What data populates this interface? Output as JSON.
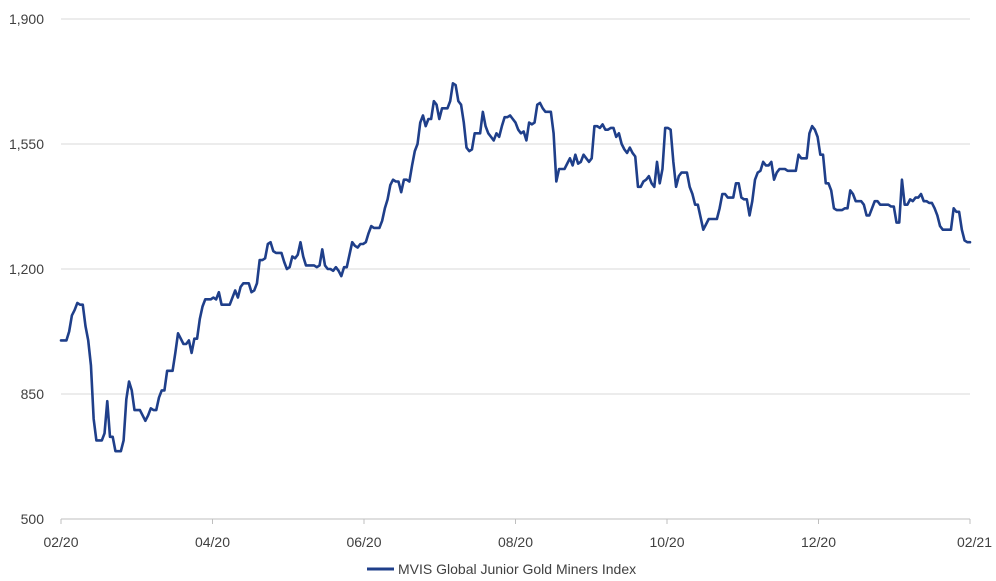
{
  "chart_data": {
    "type": "line",
    "title": "",
    "xlabel": "",
    "ylabel": "",
    "ylim": [
      500,
      1900
    ],
    "y_ticks": [
      "500",
      "850",
      "1,200",
      "1,550",
      "1,900"
    ],
    "x_ticks": [
      "02/20",
      "04/20",
      "06/20",
      "08/20",
      "10/20",
      "12/20",
      "02/21"
    ],
    "grid": "horizontal",
    "legend_position": "bottom",
    "line_color": "#1f3f8a",
    "series": [
      {
        "name": "MVIS Global Junior Gold Miners Index",
        "values": [
          1000,
          1000,
          1000,
          1025,
          1070,
          1085,
          1105,
          1100,
          1100,
          1040,
          1000,
          930,
          780,
          720,
          720,
          720,
          740,
          830,
          730,
          730,
          690,
          690,
          690,
          720,
          835,
          885,
          860,
          805,
          805,
          805,
          790,
          775,
          790,
          810,
          805,
          805,
          840,
          860,
          860,
          915,
          915,
          915,
          965,
          1020,
          1005,
          990,
          990,
          1000,
          965,
          1005,
          1005,
          1060,
          1095,
          1115,
          1115,
          1115,
          1120,
          1115,
          1135,
          1100,
          1100,
          1100,
          1100,
          1120,
          1140,
          1120,
          1150,
          1160,
          1160,
          1160,
          1135,
          1140,
          1160,
          1225,
          1225,
          1230,
          1270,
          1275,
          1250,
          1245,
          1245,
          1245,
          1220,
          1200,
          1205,
          1235,
          1230,
          1240,
          1275,
          1235,
          1210,
          1210,
          1210,
          1210,
          1205,
          1210,
          1255,
          1210,
          1200,
          1200,
          1195,
          1205,
          1195,
          1180,
          1205,
          1205,
          1240,
          1275,
          1265,
          1260,
          1270,
          1270,
          1275,
          1300,
          1320,
          1315,
          1315,
          1315,
          1335,
          1370,
          1395,
          1435,
          1450,
          1445,
          1445,
          1415,
          1450,
          1450,
          1445,
          1490,
          1530,
          1550,
          1610,
          1630,
          1600,
          1620,
          1620,
          1670,
          1660,
          1620,
          1650,
          1650,
          1650,
          1670,
          1720,
          1715,
          1670,
          1660,
          1610,
          1540,
          1530,
          1535,
          1580,
          1580,
          1580,
          1640,
          1600,
          1580,
          1570,
          1560,
          1580,
          1570,
          1600,
          1625,
          1625,
          1630,
          1620,
          1610,
          1590,
          1580,
          1585,
          1560,
          1610,
          1605,
          1610,
          1660,
          1665,
          1650,
          1640,
          1640,
          1640,
          1580,
          1445,
          1480,
          1480,
          1480,
          1495,
          1510,
          1490,
          1520,
          1495,
          1500,
          1520,
          1510,
          1500,
          1510,
          1600,
          1600,
          1595,
          1605,
          1590,
          1590,
          1595,
          1595,
          1570,
          1580,
          1550,
          1535,
          1525,
          1540,
          1525,
          1515,
          1430,
          1430,
          1445,
          1450,
          1460,
          1440,
          1430,
          1500,
          1440,
          1480,
          1595,
          1595,
          1590,
          1500,
          1430,
          1460,
          1470,
          1470,
          1470,
          1430,
          1410,
          1380,
          1380,
          1345,
          1310,
          1325,
          1340,
          1340,
          1340,
          1340,
          1370,
          1410,
          1410,
          1400,
          1400,
          1400,
          1440,
          1440,
          1400,
          1395,
          1395,
          1350,
          1390,
          1450,
          1470,
          1475,
          1500,
          1490,
          1490,
          1500,
          1450,
          1470,
          1480,
          1480,
          1480,
          1475,
          1475,
          1475,
          1475,
          1520,
          1510,
          1510,
          1510,
          1580,
          1600,
          1590,
          1570,
          1520,
          1520,
          1440,
          1440,
          1420,
          1370,
          1365,
          1365,
          1365,
          1370,
          1370,
          1420,
          1410,
          1390,
          1390,
          1390,
          1380,
          1350,
          1350,
          1370,
          1390,
          1390,
          1380,
          1380,
          1380,
          1380,
          1375,
          1375,
          1330,
          1330,
          1450,
          1380,
          1380,
          1395,
          1390,
          1400,
          1400,
          1410,
          1390,
          1390,
          1385,
          1385,
          1370,
          1350,
          1320,
          1310,
          1310,
          1310,
          1310,
          1370,
          1360,
          1360,
          1310,
          1280,
          1275,
          1275
        ]
      }
    ]
  }
}
